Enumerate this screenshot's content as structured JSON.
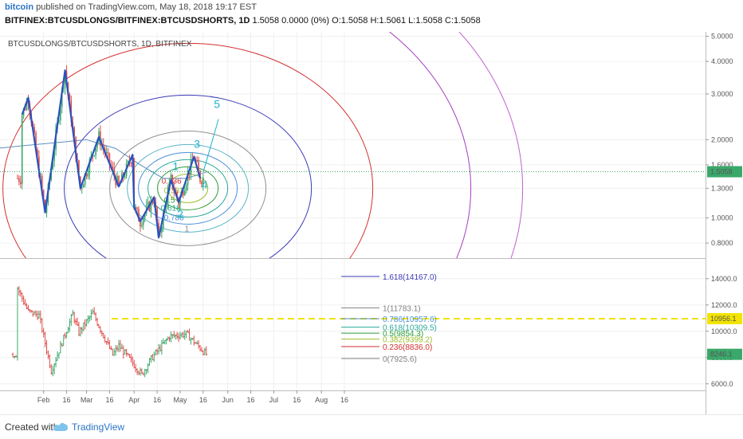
{
  "header": {
    "brand": "bitcoin",
    "published": "published on TradingView.com, May 18, 2018 19:17 EST",
    "symbol": "BITFINEX:BTCUSDLONGS/BITFINEX:BTCUSDSHORTS, 1D",
    "ohlc": "1.5058  0.0000 (0%)  O:1.5058  H:1.5061  L:1.5058  C:1.5058"
  },
  "footer": {
    "created_with": "Created with",
    "tradingview": "TradingView"
  },
  "chart_data": [
    {
      "type": "candlestick",
      "pane": "top",
      "title": "BTCUSDLONGS/BTCUSDSHORTS, 1D, BITFINEX",
      "y_scale": "log",
      "ylim": [
        0.7,
        5.2
      ],
      "y_ticks": [
        "5.0000",
        "4.0000",
        "3.0000",
        "2.0000",
        "1.6000",
        "1.3000",
        "1.0000",
        "0.8000"
      ],
      "last_price": "1.5058",
      "x_ticks": [
        "Feb",
        "16",
        "Mar",
        "16",
        "Apr",
        "16",
        "May",
        "16",
        "Jun",
        "16",
        "Jul",
        "16",
        "Aug",
        "16"
      ],
      "wave_points": [
        {
          "x": "2018-01-18",
          "y": 2.5
        },
        {
          "x": "2018-01-22",
          "y": 2.9
        },
        {
          "x": "2018-02-02",
          "y": 1.05
        },
        {
          "x": "2018-02-15",
          "y": 3.7
        },
        {
          "x": "2018-02-25",
          "y": 1.3
        },
        {
          "x": "2018-03-09",
          "y": 2.05
        },
        {
          "x": "2018-03-22",
          "y": 1.32
        },
        {
          "x": "2018-03-31",
          "y": 1.75
        },
        {
          "x": "2018-04-01",
          "y": 1.1
        },
        {
          "x": "2018-04-05",
          "y": 0.97
        },
        {
          "x": "2018-04-14",
          "y": 1.2
        },
        {
          "x": "2018-04-17",
          "y": 0.84
        },
        {
          "x": "2018-04-25",
          "y": 1.4
        },
        {
          "x": "2018-04-30",
          "y": 1.15
        },
        {
          "x": "2018-05-10",
          "y": 1.72
        },
        {
          "x": "2018-05-14",
          "y": 1.42
        }
      ],
      "wave_labels": [
        {
          "label": "1",
          "x": "2018-04-28",
          "y": 1.53
        },
        {
          "label": "2",
          "x": "2018-05-01",
          "y": 1.0
        },
        {
          "label": "3",
          "x": "2018-05-12",
          "y": 1.86
        },
        {
          "label": "4",
          "x": "2018-05-17",
          "y": 1.3
        },
        {
          "label": "5",
          "x": "2018-05-25",
          "y": 2.65
        }
      ],
      "wave5_projection": {
        "from": {
          "x": "2018-05-16",
          "y": 1.5
        },
        "to": {
          "x": "2018-05-26",
          "y": 2.4
        }
      },
      "fib_circle_labels": [
        "0.236",
        "0.382",
        "0.5",
        "0.618",
        "0.786",
        "1"
      ],
      "moving_average": [
        {
          "x": "2018-01-01",
          "y": 1.85
        },
        {
          "x": "2018-01-20",
          "y": 1.9
        },
        {
          "x": "2018-02-10",
          "y": 1.95
        },
        {
          "x": "2018-03-01",
          "y": 2.0
        },
        {
          "x": "2018-03-20",
          "y": 1.85
        },
        {
          "x": "2018-04-05",
          "y": 1.6
        },
        {
          "x": "2018-04-20",
          "y": 1.42
        },
        {
          "x": "2018-05-05",
          "y": 1.42
        },
        {
          "x": "2018-05-18",
          "y": 1.5
        }
      ]
    },
    {
      "type": "ohlc",
      "pane": "bottom",
      "series": "BTCUSD",
      "ylim": [
        5500,
        15500
      ],
      "y_ticks": [
        "14000.0",
        "12000.0",
        "10000.0",
        "8000.0",
        "6000.0"
      ],
      "last_price": "8246.1",
      "resistance_level": "10956.1",
      "price_path": [
        {
          "x": "2018-01-15",
          "y": 13300
        },
        {
          "x": "2018-01-22",
          "y": 11500
        },
        {
          "x": "2018-01-29",
          "y": 11200
        },
        {
          "x": "2018-02-06",
          "y": 7000
        },
        {
          "x": "2018-02-20",
          "y": 11300
        },
        {
          "x": "2018-02-24",
          "y": 9900
        },
        {
          "x": "2018-03-05",
          "y": 11400
        },
        {
          "x": "2018-03-18",
          "y": 8200
        },
        {
          "x": "2018-03-22",
          "y": 8900
        },
        {
          "x": "2018-04-06",
          "y": 6700
        },
        {
          "x": "2018-04-12",
          "y": 7900
        },
        {
          "x": "2018-04-24",
          "y": 9600
        },
        {
          "x": "2018-05-05",
          "y": 9800
        },
        {
          "x": "2018-05-18",
          "y": 8246
        }
      ],
      "fib_retracement": [
        {
          "label": "1.618(14167.0)",
          "value": 14167.0,
          "color": "#3b3bb8"
        },
        {
          "label": "1(11783.1)",
          "value": 11783.1,
          "color": "#808080"
        },
        {
          "label": "0.786(10957.6)",
          "value": 10957.6,
          "color": "#4a90d9"
        },
        {
          "label": "0.618(10309.5)",
          "value": 10309.5,
          "color": "#2aa89a"
        },
        {
          "label": "0.5(9854.3)",
          "value": 9854.3,
          "color": "#2e9d3a"
        },
        {
          "label": "0.382(9399.2)",
          "value": 9399.2,
          "color": "#9bbd2c"
        },
        {
          "label": "0.236(8836.0)",
          "value": 8836.0,
          "color": "#d42f2f"
        },
        {
          "label": "0(7925.6)",
          "value": 7925.6,
          "color": "#808080"
        }
      ]
    }
  ]
}
